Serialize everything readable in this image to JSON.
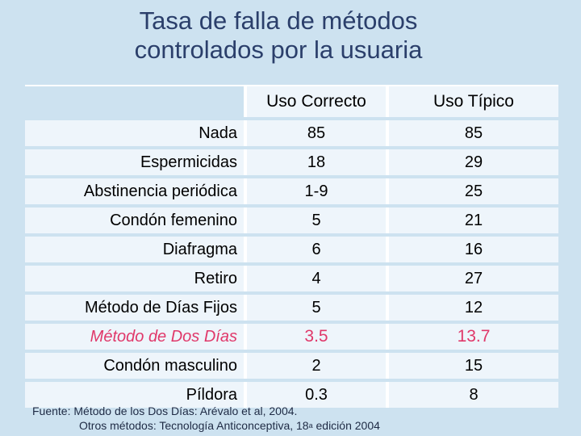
{
  "title": {
    "line1": "Tasa de falla de métodos",
    "line2": "controlados por la usuaria"
  },
  "table": {
    "columns": [
      "Uso Correcto",
      "Uso Típico"
    ],
    "rows": [
      {
        "label": "Nada",
        "correcto": "85",
        "tipico": "85"
      },
      {
        "label": "Espermicidas",
        "correcto": "18",
        "tipico": "29"
      },
      {
        "label": "Abstinencia periódica",
        "correcto": "1-9",
        "tipico": "25"
      },
      {
        "label": "Condón femenino",
        "correcto": "5",
        "tipico": "21"
      },
      {
        "label": "Diafragma",
        "correcto": "6",
        "tipico": "16"
      },
      {
        "label": "Retiro",
        "correcto": "4",
        "tipico": "27"
      },
      {
        "label": "Método de Días Fijos",
        "correcto": "5",
        "tipico": "12"
      },
      {
        "label": "Método de Dos Días",
        "correcto": "3.5",
        "tipico": "13.7"
      },
      {
        "label": "Condón masculino",
        "correcto": "2",
        "tipico": "15"
      },
      {
        "label": "Píldora",
        "correcto": "0.3",
        "tipico": "8"
      }
    ],
    "highlight_color": "#e0386a"
  },
  "footer": {
    "line1": "Fuente: Método de los Dos Días:  Arévalo et al, 2004.",
    "line2_prefix": "Otros métodos:  Tecnología Anticonceptiva, 18",
    "line2_sup": "a",
    "line2_suffix": " edición 2004"
  }
}
